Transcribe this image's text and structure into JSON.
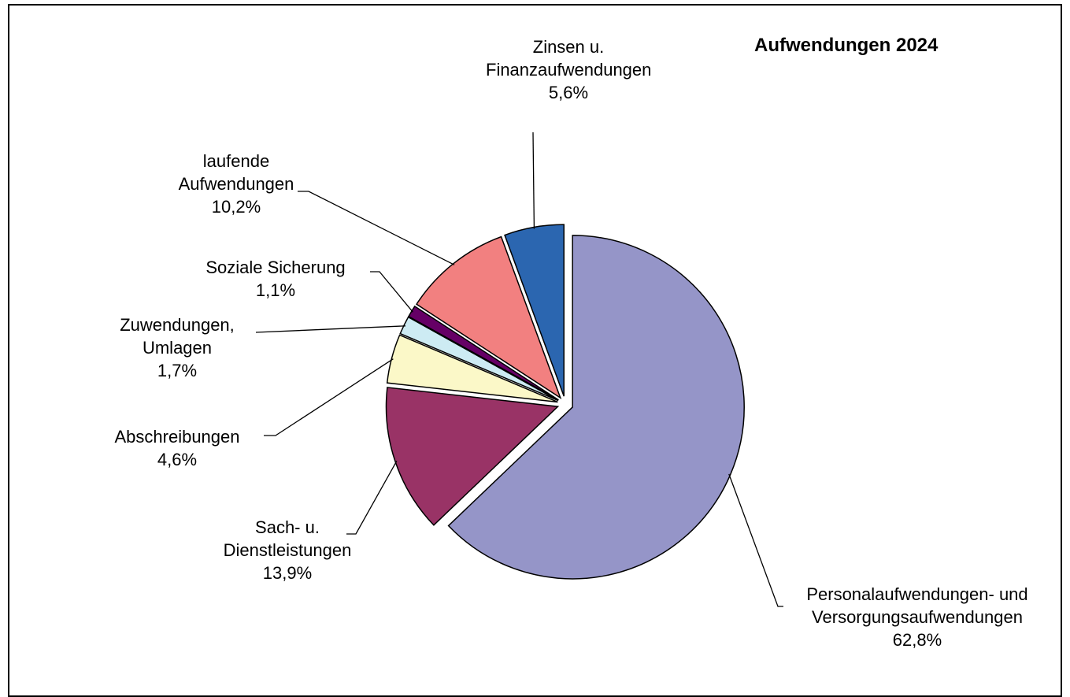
{
  "chart_data": {
    "type": "pie",
    "title": "Aufwendungen 2024",
    "categories": [
      "Personalaufwendungen- und Versorgungsaufwendungen",
      "Sach- u. Dienstleistungen",
      "Abschreibungen",
      "Zuwendungen, Umlagen",
      "Soziale Sicherung",
      "laufende Aufwendungen",
      "Zinsen u. Finanzaufwendungen"
    ],
    "values": [
      62.8,
      13.9,
      4.6,
      1.7,
      1.1,
      10.2,
      5.6
    ],
    "value_labels": [
      "62,8%",
      "13,9%",
      "4,6%",
      "1,7%",
      "1,1%",
      "10,2%",
      "5,6%"
    ],
    "colors": [
      "#9595c8",
      "#993366",
      "#fbf8c8",
      "#cdebf3",
      "#660066",
      "#f28080",
      "#2b66b0"
    ]
  }
}
